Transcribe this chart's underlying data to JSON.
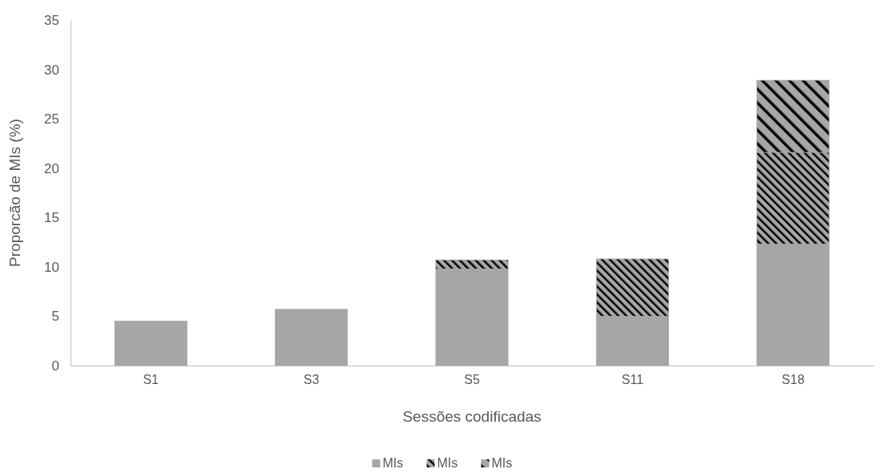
{
  "chart_data": {
    "type": "bar",
    "stacked": true,
    "xlabel": "Sessões codificadas",
    "ylabel": "Proporcão de MIs (%)",
    "categories": [
      "S1",
      "S3",
      "S5",
      "S11",
      "S18"
    ],
    "series": [
      {
        "name": "MIs",
        "color": "#a6a6a6",
        "values": [
          4.5,
          5.7,
          9.8,
          5.0,
          12.3
        ]
      },
      {
        "name": "MIs",
        "color": "#a6a6a6",
        "values": [
          0,
          0,
          0.9,
          5.8,
          9.3
        ]
      },
      {
        "name": "MIs",
        "color": "#a6a6a6",
        "values": [
          0,
          0,
          0,
          0,
          7.3
        ]
      }
    ],
    "ylim": [
      0,
      35
    ],
    "yticks": [
      0,
      5,
      10,
      15,
      20,
      25,
      30,
      35
    ],
    "grid": false,
    "legend": "bottom"
  }
}
